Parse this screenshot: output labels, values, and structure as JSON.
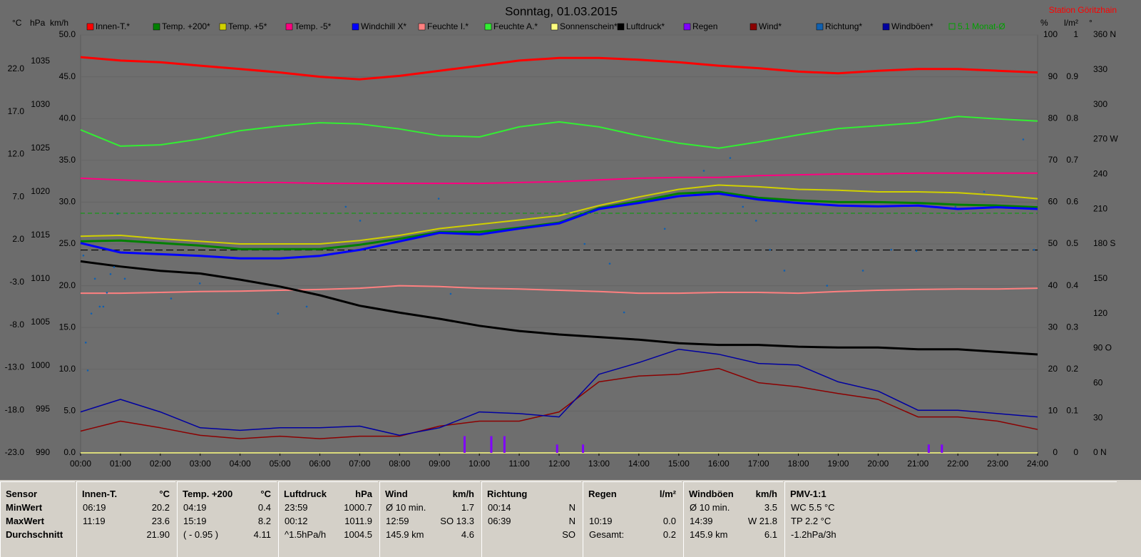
{
  "chart_data": {
    "type": "line",
    "title": "Sonntag, 01.03.2015",
    "station": "Station Göritzhain",
    "grid": true,
    "grid_axis": "kmh",
    "axes": {
      "temp": {
        "label": "°C",
        "lim": [
          -23,
          26
        ],
        "ticks": [
          {
            "value": -23,
            "label": "-23.0"
          },
          {
            "value": -18,
            "label": "-18.0"
          },
          {
            "value": -13,
            "label": "-13.0"
          },
          {
            "value": -8,
            "label": "-8.0"
          },
          {
            "value": -3,
            "label": "-3.0"
          },
          {
            "value": 2,
            "label": "2.0"
          },
          {
            "value": 7,
            "label": "7.0"
          },
          {
            "value": 12,
            "label": "12.0"
          },
          {
            "value": 17,
            "label": "17.0"
          },
          {
            "value": 22,
            "label": "22.0"
          }
        ]
      },
      "hpa": {
        "label": "hPa",
        "lim": [
          990,
          1038
        ],
        "ticks": [
          990,
          995,
          1000,
          1005,
          1010,
          1015,
          1020,
          1025,
          1030,
          1035
        ]
      },
      "kmh": {
        "label": "km/h",
        "lim": [
          0,
          50
        ],
        "ticks": [
          {
            "value": 0,
            "label": "0.0"
          },
          {
            "value": 5,
            "label": "5.0"
          },
          {
            "value": 10,
            "label": "10.0"
          },
          {
            "value": 15,
            "label": "15.0"
          },
          {
            "value": 20,
            "label": "20.0"
          },
          {
            "value": 25,
            "label": "25.0"
          },
          {
            "value": 30,
            "label": "30.0"
          },
          {
            "value": 35,
            "label": "35.0"
          },
          {
            "value": 40,
            "label": "40.0"
          },
          {
            "value": 45,
            "label": "45.0"
          },
          {
            "value": 50,
            "label": "50.0"
          }
        ]
      },
      "pct": {
        "label": "%",
        "lim": [
          0,
          100
        ],
        "ticks": [
          0,
          10,
          20,
          30,
          40,
          50,
          60,
          70,
          80,
          90,
          100
        ]
      },
      "lm2": {
        "label": "l/m²",
        "lim": [
          0,
          1
        ],
        "ticks": [
          0,
          0.1,
          0.2,
          0.3,
          0.4,
          0.5,
          0.6,
          0.7,
          0.8,
          0.9,
          1
        ]
      },
      "deg": {
        "label": "°",
        "lim": [
          0,
          360
        ],
        "ticks": [
          {
            "value": 0,
            "label": "0  N"
          },
          {
            "value": 30,
            "label": "30"
          },
          {
            "value": 60,
            "label": "60"
          },
          {
            "value": 90,
            "label": "90  O"
          },
          {
            "value": 120,
            "label": "120"
          },
          {
            "value": 150,
            "label": "150"
          },
          {
            "value": 180,
            "label": "180  S"
          },
          {
            "value": 210,
            "label": "210"
          },
          {
            "value": 240,
            "label": "240"
          },
          {
            "value": 270,
            "label": "270 W"
          },
          {
            "value": 300,
            "label": "300"
          },
          {
            "value": 330,
            "label": "330"
          },
          {
            "value": 360,
            "label": "360  N"
          }
        ]
      }
    },
    "xlim": [
      0,
      24
    ],
    "xticks": [
      {
        "value": 0,
        "label": "00:00"
      },
      {
        "value": 1,
        "label": "01:00"
      },
      {
        "value": 2,
        "label": "02:00"
      },
      {
        "value": 3,
        "label": "03:00"
      },
      {
        "value": 4,
        "label": "04:00"
      },
      {
        "value": 5,
        "label": "05:00"
      },
      {
        "value": 6,
        "label": "06:00"
      },
      {
        "value": 7,
        "label": "07:00"
      },
      {
        "value": 8,
        "label": "08:00"
      },
      {
        "value": 9,
        "label": "09:00"
      },
      {
        "value": 10,
        "label": "10:00"
      },
      {
        "value": 11,
        "label": "11:00"
      },
      {
        "value": 12,
        "label": "12:00"
      },
      {
        "value": 13,
        "label": "13:00"
      },
      {
        "value": 14,
        "label": "14:00"
      },
      {
        "value": 15,
        "label": "15:00"
      },
      {
        "value": 16,
        "label": "16:00"
      },
      {
        "value": 17,
        "label": "17:00"
      },
      {
        "value": 18,
        "label": "18:00"
      },
      {
        "value": 19,
        "label": "19:00"
      },
      {
        "value": 20,
        "label": "20:00"
      },
      {
        "value": 21,
        "label": "21:00"
      },
      {
        "value": 22,
        "label": "22:00"
      },
      {
        "value": 23,
        "label": "23:00"
      },
      {
        "value": 24,
        "label": "24:00"
      }
    ],
    "x": [
      0,
      1,
      2,
      3,
      4,
      5,
      6,
      7,
      8,
      9,
      10,
      11,
      12,
      13,
      14,
      15,
      16,
      17,
      18,
      19,
      20,
      21,
      22,
      23,
      24
    ],
    "series": [
      {
        "name": "Innen-T.*",
        "color": "#ff0000",
        "axis": "temp",
        "width": 3,
        "values": [
          23.4,
          23.0,
          22.8,
          22.4,
          22.0,
          21.6,
          21.1,
          20.8,
          21.2,
          21.8,
          22.4,
          23.0,
          23.3,
          23.3,
          23.1,
          22.8,
          22.4,
          22.1,
          21.7,
          21.5,
          21.8,
          22.0,
          22.0,
          21.8,
          21.6
        ]
      },
      {
        "name": "Temp. +200*",
        "color": "#008000",
        "axis": "temp",
        "width": 3,
        "values": [
          1.8,
          1.9,
          1.6,
          1.3,
          0.9,
          0.9,
          0.9,
          1.4,
          2.1,
          2.9,
          2.9,
          3.4,
          4.0,
          5.7,
          6.5,
          7.4,
          7.6,
          6.9,
          6.6,
          6.4,
          6.4,
          6.3,
          6.1,
          6.0,
          5.8
        ]
      },
      {
        "name": "Temp. +5*",
        "color": "#d0d000",
        "axis": "temp",
        "width": 2,
        "values": [
          2.4,
          2.5,
          2.1,
          1.8,
          1.5,
          1.5,
          1.5,
          1.9,
          2.5,
          3.3,
          3.8,
          4.3,
          4.8,
          6.0,
          7.0,
          7.9,
          8.4,
          8.2,
          7.9,
          7.8,
          7.6,
          7.6,
          7.5,
          7.2,
          6.8
        ]
      },
      {
        "name": "Temp. -5*",
        "color": "#ff0080",
        "axis": "temp",
        "width": 2,
        "values": [
          9.2,
          9.0,
          8.8,
          8.8,
          8.7,
          8.7,
          8.6,
          8.6,
          8.6,
          8.6,
          8.6,
          8.7,
          8.8,
          9.0,
          9.2,
          9.3,
          9.3,
          9.5,
          9.6,
          9.7,
          9.7,
          9.8,
          9.8,
          9.8,
          9.8
        ]
      },
      {
        "name": "Windchill X*",
        "color": "#0000ff",
        "axis": "temp",
        "width": 3,
        "values": [
          1.6,
          0.5,
          0.3,
          0.1,
          -0.2,
          -0.2,
          0.1,
          0.8,
          1.8,
          2.8,
          2.6,
          3.3,
          3.9,
          5.6,
          6.3,
          7.1,
          7.4,
          6.7,
          6.3,
          6.0,
          5.9,
          6.0,
          5.6,
          5.8,
          5.6
        ]
      },
      {
        "name": "Feuchte I.*",
        "color": "#ff8080",
        "axis": "pct",
        "width": 2,
        "values": [
          38.2,
          38.2,
          38.4,
          38.6,
          38.7,
          38.9,
          39.1,
          39.4,
          40.0,
          39.8,
          39.4,
          39.2,
          38.9,
          38.6,
          38.2,
          38.2,
          38.4,
          38.4,
          38.2,
          38.6,
          38.9,
          39.1,
          39.2,
          39.2,
          39.4
        ]
      },
      {
        "name": "Feuchte A.*",
        "color": "#33ee33",
        "axis": "pct",
        "width": 2,
        "values": [
          77.3,
          73.4,
          73.7,
          75.1,
          77.1,
          78.2,
          79.0,
          78.7,
          77.5,
          75.9,
          75.6,
          78.0,
          79.2,
          78.0,
          75.9,
          74.1,
          72.9,
          74.4,
          76.1,
          77.6,
          78.3,
          79.0,
          80.5,
          79.9,
          79.4
        ]
      },
      {
        "name": "Sonnenschein*",
        "color": "#ffff80",
        "axis": "pct",
        "width": 1.5,
        "values": [
          0,
          0,
          0,
          0,
          0,
          0,
          0,
          0,
          0,
          0,
          0,
          0,
          0,
          0,
          0,
          0,
          0,
          0,
          0,
          0,
          0,
          0,
          0,
          0,
          0
        ]
      },
      {
        "name": "Luftdruck*",
        "color": "#000000",
        "axis": "hpa",
        "width": 3,
        "values": [
          1012.0,
          1011.4,
          1010.9,
          1010.6,
          1009.9,
          1009.1,
          1008.1,
          1006.9,
          1006.1,
          1005.4,
          1004.6,
          1004.0,
          1003.6,
          1003.3,
          1003.0,
          1002.6,
          1002.4,
          1002.4,
          1002.2,
          1002.1,
          1002.1,
          1001.9,
          1001.9,
          1001.6,
          1001.3
        ]
      },
      {
        "name": "Regen",
        "color": "#8000ff",
        "axis": "lm2",
        "style": "bars",
        "x": [
          9.63,
          10.3,
          10.63,
          11.95,
          12.6,
          21.27,
          21.6
        ],
        "values": [
          0.04,
          0.04,
          0.04,
          0.02,
          0.02,
          0.02,
          0.02
        ]
      },
      {
        "name": "Wind*",
        "color": "#8b0000",
        "axis": "kmh",
        "width": 1.5,
        "values": [
          2.6,
          3.8,
          3.0,
          2.1,
          1.7,
          2.0,
          1.7,
          2.0,
          2.0,
          3.2,
          3.8,
          3.8,
          4.9,
          8.5,
          9.2,
          9.4,
          10.1,
          8.4,
          7.9,
          7.1,
          6.4,
          4.3,
          4.3,
          3.8,
          2.8
        ]
      },
      {
        "name": "Richtung*",
        "color": "#1060b0",
        "axis": "deg",
        "style": "dots",
        "x": [
          0.07,
          0.13,
          0.18,
          0.27,
          0.36,
          0.48,
          0.57,
          0.66,
          0.75,
          0.84,
          0.93,
          1.11,
          2.27,
          2.99,
          4.95,
          5.67,
          6.65,
          7.01,
          8.98,
          9.28,
          12.64,
          13.27,
          13.63,
          14.65,
          15.63,
          16.29,
          16.61,
          16.94,
          17.29,
          17.65,
          18.72,
          19.62,
          20.33,
          20.96,
          21.94,
          22.66,
          23.64,
          23.91
        ],
        "values": [
          170,
          95,
          71,
          120,
          150,
          126,
          126,
          138,
          154,
          160,
          206,
          150,
          133,
          146,
          120,
          126,
          212,
          200,
          219,
          137,
          180,
          163,
          121,
          193,
          243,
          254,
          212,
          200,
          175,
          157,
          144,
          157,
          175,
          174,
          212,
          225,
          270,
          175
        ]
      },
      {
        "name": "Windböen*",
        "color": "#0000a0",
        "axis": "kmh",
        "width": 1.5,
        "values": [
          4.9,
          6.4,
          4.9,
          3.0,
          2.7,
          3.0,
          3.0,
          3.2,
          2.1,
          3.0,
          4.9,
          4.7,
          4.3,
          9.4,
          10.8,
          12.4,
          11.8,
          10.7,
          10.5,
          8.5,
          7.4,
          5.1,
          5.1,
          4.7,
          4.3
        ]
      },
      {
        "name": "5.1 Monat-Ø",
        "color": "#00a000",
        "axis": "temp",
        "style": "reference",
        "value": 5.1
      }
    ],
    "reference_lines": [
      {
        "axis": "hpa",
        "value": 1013.3,
        "color": "#000000"
      }
    ]
  },
  "table": {
    "columns": [
      {
        "header": "Sensor",
        "rows": [
          {
            "left": "MinWert"
          },
          {
            "left": "MaxWert"
          },
          {
            "left": "Durchschnitt"
          }
        ]
      },
      {
        "header": "Innen-T.",
        "unit": "°C",
        "rows": [
          {
            "left": "06:19",
            "right": "20.2"
          },
          {
            "left": "11:19",
            "right": "23.6"
          },
          {
            "right": "21.90"
          }
        ]
      },
      {
        "header": "Temp. +200",
        "unit": "°C",
        "rows": [
          {
            "left": "04:19",
            "right": "0.4"
          },
          {
            "left": "15:19",
            "right": "8.2"
          },
          {
            "left": "( - 0.95 )",
            "right": "4.11"
          }
        ]
      },
      {
        "header": "Luftdruck",
        "unit": "hPa",
        "rows": [
          {
            "left": "23:59",
            "right": "1000.7"
          },
          {
            "left": "00:12",
            "right": "1011.9"
          },
          {
            "left": "^1.5hPa/h",
            "right": "1004.5"
          }
        ]
      },
      {
        "header": "Wind",
        "unit": "km/h",
        "rows": [
          {
            "left": "Ø 10 min.",
            "right": "1.7"
          },
          {
            "left": "12:59",
            "right": "SO 13.3"
          },
          {
            "left": "145.9 km",
            "right": "4.6"
          }
        ]
      },
      {
        "header": "Richtung",
        "rows": [
          {
            "left": "00:14",
            "right": "N"
          },
          {
            "left": "06:39",
            "right": "N"
          },
          {
            "right": "SO"
          }
        ]
      },
      {
        "header": "Regen",
        "unit": "l/m²",
        "rows": [
          {},
          {
            "left": "10:19",
            "right": "0.0"
          },
          {
            "left": "Gesamt:",
            "right": "0.2"
          }
        ]
      },
      {
        "header": "Windböen",
        "unit": "km/h",
        "rows": [
          {
            "left": "Ø 10 min.",
            "right": "3.5"
          },
          {
            "left": "14:39",
            "right": "W 21.8"
          },
          {
            "left": "145.9 km",
            "right": "6.1"
          }
        ]
      },
      {
        "header": "PMV-1:1",
        "rows": [
          {
            "left": "WC 5.5 °C"
          },
          {
            "left": "TP 2.2 °C"
          },
          {
            "left": "-1.2hPa/3h"
          }
        ]
      }
    ]
  }
}
